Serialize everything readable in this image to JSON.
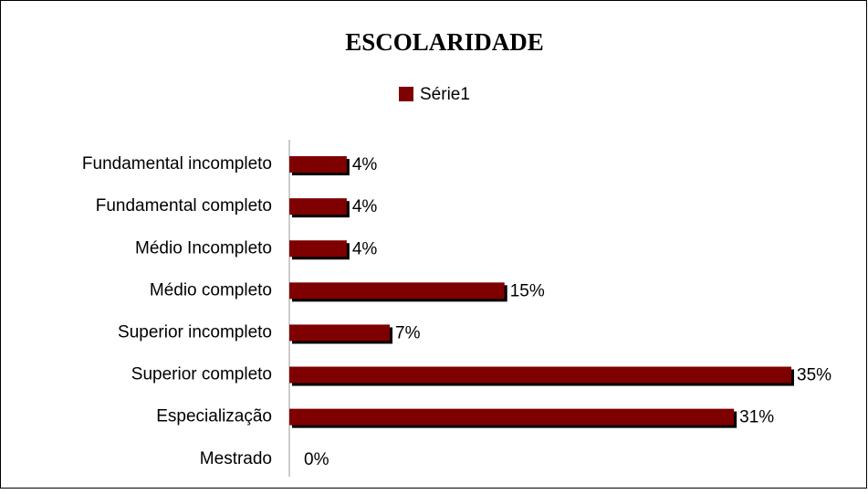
{
  "chart_data": {
    "type": "bar",
    "orientation": "horizontal",
    "title": "ESCOLARIDADE",
    "categories": [
      "Fundamental incompleto",
      "Fundamental completo",
      "Médio Incompleto",
      "Médio completo",
      "Superior incompleto",
      "Superior completo",
      "Especialização",
      "Mestrado"
    ],
    "series": [
      {
        "name": "Série1",
        "color": "#7f0000",
        "values": [
          4,
          4,
          4,
          15,
          7,
          35,
          31,
          0
        ],
        "value_labels": [
          "4%",
          "4%",
          "4%",
          "15%",
          "7%",
          "35%",
          "31%",
          "0%"
        ]
      }
    ],
    "legend": "top"
  }
}
